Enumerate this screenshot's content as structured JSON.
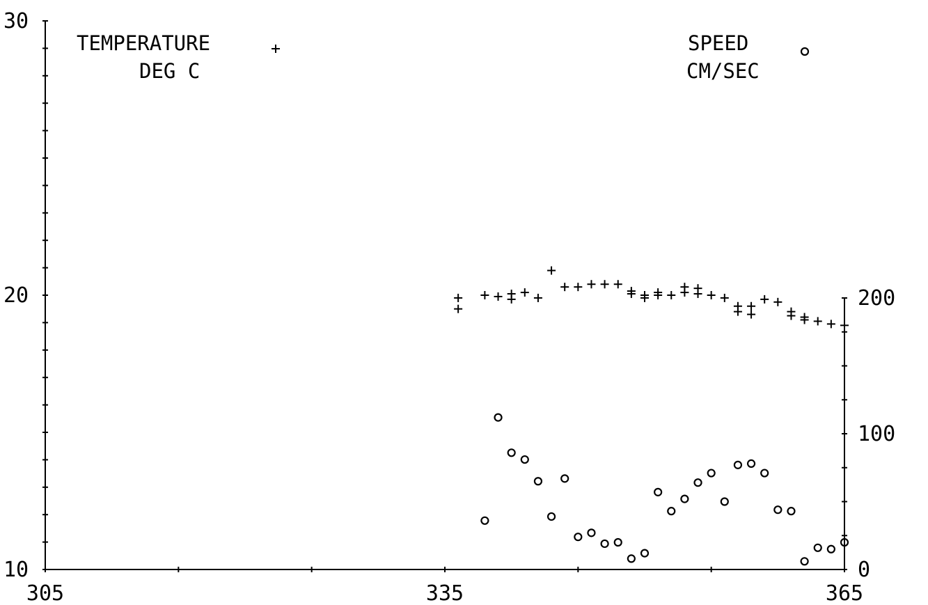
{
  "chart_data": {
    "type": "scatter",
    "x_axis": {
      "min": 305,
      "max": 365,
      "ticks": [
        "305",
        "335",
        "365"
      ]
    },
    "left_axis": {
      "min": 10,
      "max": 30,
      "ticks": [
        "10",
        "20",
        "30"
      ]
    },
    "right_axis": {
      "min": 0,
      "max": 200,
      "ticks": [
        "0",
        "100",
        "200"
      ]
    },
    "series": [
      {
        "name": "TEMPERATURE",
        "unit": "DEG C",
        "marker": "+",
        "axis": "left",
        "points": [
          [
            336.0,
            19.9
          ],
          [
            336.0,
            19.5
          ],
          [
            338.0,
            20.0
          ],
          [
            339.0,
            19.95
          ],
          [
            340.0,
            20.05
          ],
          [
            340.0,
            19.85
          ],
          [
            341.0,
            20.1
          ],
          [
            342.0,
            19.9
          ],
          [
            343.0,
            20.9
          ],
          [
            344.0,
            20.3
          ],
          [
            345.0,
            20.3
          ],
          [
            346.0,
            20.4
          ],
          [
            347.0,
            20.4
          ],
          [
            348.0,
            20.4
          ],
          [
            349.0,
            20.15
          ],
          [
            349.0,
            20.05
          ],
          [
            350.0,
            20.0
          ],
          [
            350.0,
            19.9
          ],
          [
            351.0,
            20.1
          ],
          [
            351.0,
            20.0
          ],
          [
            352.0,
            20.0
          ],
          [
            353.0,
            20.3
          ],
          [
            353.0,
            20.1
          ],
          [
            354.0,
            20.25
          ],
          [
            354.0,
            20.05
          ],
          [
            355.0,
            20.0
          ],
          [
            356.0,
            19.9
          ],
          [
            357.0,
            19.6
          ],
          [
            357.0,
            19.4
          ],
          [
            358.0,
            19.6
          ],
          [
            358.0,
            19.3
          ],
          [
            359.0,
            19.85
          ],
          [
            360.0,
            19.75
          ],
          [
            361.0,
            19.4
          ],
          [
            361.0,
            19.25
          ],
          [
            362.0,
            19.2
          ],
          [
            362.0,
            19.1
          ],
          [
            363.0,
            19.05
          ],
          [
            364.0,
            18.95
          ],
          [
            365.0,
            18.9
          ]
        ]
      },
      {
        "name": "SPEED",
        "unit": "CM/SEC",
        "marker": "o",
        "axis": "right",
        "points": [
          [
            338.0,
            36
          ],
          [
            339.0,
            112
          ],
          [
            340.0,
            86
          ],
          [
            341.0,
            81
          ],
          [
            342.0,
            65
          ],
          [
            343.0,
            39
          ],
          [
            344.0,
            67
          ],
          [
            345.0,
            24
          ],
          [
            346.0,
            27
          ],
          [
            347.0,
            19
          ],
          [
            348.0,
            20
          ],
          [
            349.0,
            8
          ],
          [
            350.0,
            12
          ],
          [
            351.0,
            57
          ],
          [
            352.0,
            43
          ],
          [
            353.0,
            52
          ],
          [
            354.0,
            64
          ],
          [
            355.0,
            71
          ],
          [
            356.0,
            50
          ],
          [
            357.0,
            77
          ],
          [
            358.0,
            78
          ],
          [
            359.0,
            71
          ],
          [
            360.0,
            44
          ],
          [
            361.0,
            43
          ],
          [
            362.0,
            6
          ],
          [
            363.0,
            16
          ],
          [
            364.0,
            15
          ],
          [
            365.0,
            20
          ]
        ]
      }
    ],
    "legend": {
      "temperature": {
        "line1": "TEMPERATURE",
        "line2": "DEG C",
        "symbol": "+"
      },
      "speed": {
        "line1": "SPEED",
        "line2": "CM/SEC",
        "symbol": "o"
      }
    }
  }
}
